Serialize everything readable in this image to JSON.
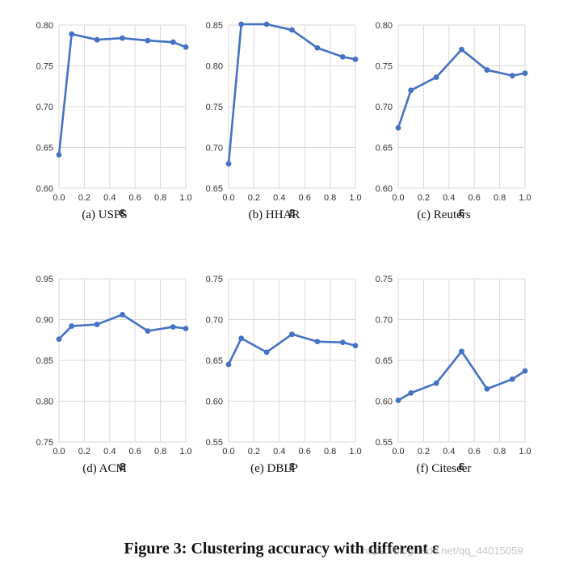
{
  "figure": {
    "title": "Figure 3: Clustering accuracy with different ε",
    "watermark": "https://blog.csdn.net/qq_44015059"
  },
  "style": {
    "line_color": "#4472C4",
    "grid_color": "#d9d9d9"
  },
  "chart_data": [
    {
      "type": "line",
      "caption": "(a)  USPS",
      "xlabel": "ε",
      "x": [
        0.0,
        0.1,
        0.3,
        0.5,
        0.7,
        0.9,
        1.0
      ],
      "series": [
        {
          "values": [
            0.641,
            0.789,
            0.782,
            0.784,
            0.781,
            0.779,
            0.773
          ]
        }
      ],
      "xlim": [
        0.0,
        1.0
      ],
      "ylim": [
        0.6,
        0.8
      ],
      "xticks": [
        "0.0",
        "0.2",
        "0.4",
        "0.6",
        "0.8",
        "1.0"
      ],
      "yticks": [
        "0.60",
        "0.65",
        "0.70",
        "0.75",
        "0.80"
      ]
    },
    {
      "type": "line",
      "caption": "(b)  HHAR",
      "xlabel": "ε",
      "x": [
        0.0,
        0.1,
        0.3,
        0.5,
        0.7,
        0.9,
        1.0
      ],
      "series": [
        {
          "values": [
            0.68,
            0.851,
            0.851,
            0.844,
            0.822,
            0.811,
            0.808
          ]
        }
      ],
      "xlim": [
        0.0,
        1.0
      ],
      "ylim": [
        0.65,
        0.85
      ],
      "xticks": [
        "0.0",
        "0.2",
        "0.4",
        "0.6",
        "0.8",
        "1.0"
      ],
      "yticks": [
        "0.65",
        "0.70",
        "0.75",
        "0.80",
        "0.85"
      ]
    },
    {
      "type": "line",
      "caption": "(c)  Reuters",
      "xlabel": "ε",
      "x": [
        0.0,
        0.1,
        0.3,
        0.5,
        0.7,
        0.9,
        1.0
      ],
      "series": [
        {
          "values": [
            0.674,
            0.72,
            0.736,
            0.77,
            0.745,
            0.738,
            0.741
          ]
        }
      ],
      "xlim": [
        0.0,
        1.0
      ],
      "ylim": [
        0.6,
        0.8
      ],
      "xticks": [
        "0.0",
        "0.2",
        "0.4",
        "0.6",
        "0.8",
        "1.0"
      ],
      "yticks": [
        "0.60",
        "0.65",
        "0.70",
        "0.75",
        "0.80"
      ]
    },
    {
      "type": "line",
      "caption": "(d)  ACM",
      "xlabel": "ε",
      "x": [
        0.0,
        0.1,
        0.3,
        0.5,
        0.7,
        0.9,
        1.0
      ],
      "series": [
        {
          "values": [
            0.876,
            0.892,
            0.894,
            0.906,
            0.886,
            0.891,
            0.889
          ]
        }
      ],
      "xlim": [
        0.0,
        1.0
      ],
      "ylim": [
        0.75,
        0.95
      ],
      "xticks": [
        "0.0",
        "0.2",
        "0.4",
        "0.6",
        "0.8",
        "1.0"
      ],
      "yticks": [
        "0.75",
        "0.80",
        "0.85",
        "0.90",
        "0.95"
      ]
    },
    {
      "type": "line",
      "caption": "(e)  DBLP",
      "xlabel": "ε",
      "x": [
        0.0,
        0.1,
        0.3,
        0.5,
        0.7,
        0.9,
        1.0
      ],
      "series": [
        {
          "values": [
            0.645,
            0.677,
            0.66,
            0.682,
            0.673,
            0.672,
            0.668
          ]
        }
      ],
      "xlim": [
        0.0,
        1.0
      ],
      "ylim": [
        0.55,
        0.75
      ],
      "xticks": [
        "0.0",
        "0.2",
        "0.4",
        "0.6",
        "0.8",
        "1.0"
      ],
      "yticks": [
        "0.55",
        "0.60",
        "0.65",
        "0.70",
        "0.75"
      ]
    },
    {
      "type": "line",
      "caption": "(f)  Citeseer",
      "xlabel": "ε",
      "x": [
        0.0,
        0.1,
        0.3,
        0.5,
        0.7,
        0.9,
        1.0
      ],
      "series": [
        {
          "values": [
            0.601,
            0.61,
            0.622,
            0.661,
            0.615,
            0.627,
            0.637
          ]
        }
      ],
      "xlim": [
        0.0,
        1.0
      ],
      "ylim": [
        0.55,
        0.75
      ],
      "xticks": [
        "0.0",
        "0.2",
        "0.4",
        "0.6",
        "0.8",
        "1.0"
      ],
      "yticks": [
        "0.55",
        "0.60",
        "0.65",
        "0.70",
        "0.75"
      ]
    }
  ]
}
